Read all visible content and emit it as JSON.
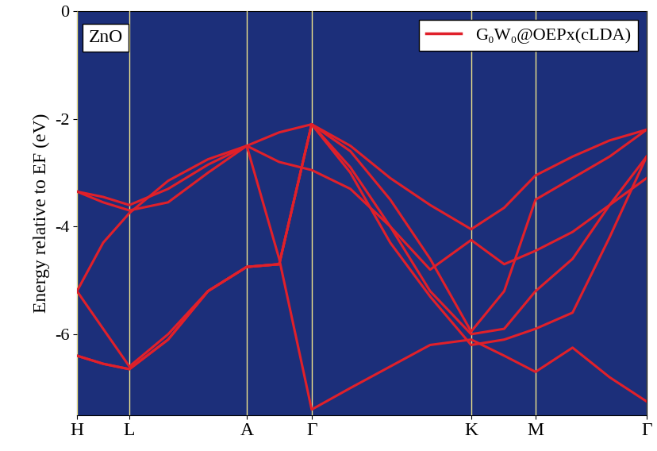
{
  "chart_data": {
    "type": "line",
    "annotation": "ZnO",
    "y_label": "Energy relative to EF (eV)",
    "x": [
      0,
      0.046,
      0.092,
      0.16,
      0.23,
      0.298,
      0.355,
      0.412,
      0.48,
      0.55,
      0.62,
      0.692,
      0.75,
      0.805,
      0.87,
      0.935,
      1.0
    ],
    "xlim": [
      0,
      1.0
    ],
    "xticks": [
      {
        "value": 0,
        "label": "H"
      },
      {
        "value": 0.092,
        "label": "L"
      },
      {
        "value": 0.298,
        "label": "A"
      },
      {
        "value": 0.412,
        "label": "Γ"
      },
      {
        "value": 0.692,
        "label": "K"
      },
      {
        "value": 0.805,
        "label": "M"
      },
      {
        "value": 1.0,
        "label": "Γ"
      }
    ],
    "ylim": [
      -7.5,
      0
    ],
    "yticks": [
      0,
      -2,
      -4,
      -6
    ],
    "grid": "x",
    "legend": "upper right",
    "series": [
      {
        "name": "G₀W₀@OEPx(cLDA)",
        "color": "#e0202a",
        "line_style": "solid",
        "values": [
          [
            -3.35,
            -3.45,
            -3.6,
            -3.3,
            -2.85,
            -2.5,
            -2.25,
            -2.1,
            -2.5,
            -3.1,
            -3.6,
            -4.05,
            -3.65,
            -3.05,
            -2.7,
            -2.4,
            -2.2
          ],
          [
            -3.35,
            -3.55,
            -3.7,
            -3.55,
            -3.0,
            -2.5,
            -2.8,
            -2.95,
            -3.3,
            -4.0,
            -4.8,
            -4.25,
            -4.7,
            -4.45,
            -4.1,
            -3.6,
            -3.1
          ],
          [
            -5.2,
            -4.3,
            -3.75,
            -3.15,
            -2.75,
            -2.5,
            -4.6,
            -7.4,
            -7.0,
            -6.6,
            -6.2,
            -6.1,
            -6.4,
            -6.7,
            -6.25,
            -6.8,
            -7.25
          ],
          [
            -5.2,
            -5.9,
            -6.6,
            -6.0,
            -5.2,
            -4.75,
            -4.7,
            -2.1,
            -2.6,
            -3.5,
            -4.6,
            -5.95,
            -5.2,
            -3.5,
            -3.1,
            -2.7,
            -2.2
          ],
          [
            -6.4,
            -6.55,
            -6.65,
            -6.1,
            -5.2,
            -4.75,
            -4.7,
            -2.1,
            -2.9,
            -4.0,
            -5.2,
            -6.0,
            -5.9,
            -5.2,
            -4.6,
            -3.6,
            -2.7
          ],
          [
            -6.4,
            -6.55,
            -6.65,
            -6.1,
            -5.2,
            -4.75,
            -4.7,
            -2.1,
            -3.0,
            -4.3,
            -5.3,
            -6.2,
            -6.1,
            -5.9,
            -5.6,
            -4.2,
            -2.7
          ]
        ]
      }
    ]
  }
}
